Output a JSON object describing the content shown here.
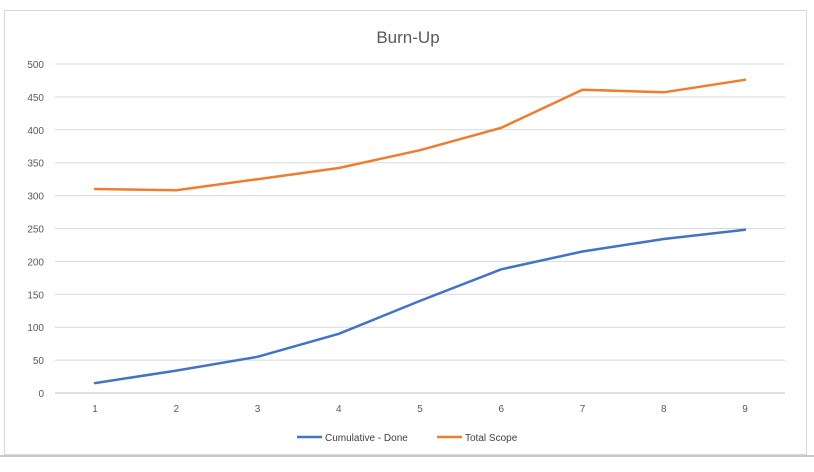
{
  "chart_data": {
    "type": "line",
    "title": "Burn-Up",
    "xlabel": "",
    "ylabel": "",
    "x": [
      1,
      2,
      3,
      4,
      5,
      6,
      7,
      8,
      9
    ],
    "ylim": [
      0,
      500
    ],
    "yticks": [
      0,
      50,
      100,
      150,
      200,
      250,
      300,
      350,
      400,
      450,
      500
    ],
    "grid": true,
    "legend_position": "bottom",
    "series": [
      {
        "name": "Cumulative - Done",
        "color": "#4472c4",
        "values": [
          15,
          34,
          55,
          90,
          140,
          188,
          215,
          234,
          248
        ]
      },
      {
        "name": "Total Scope",
        "color": "#ed7d31",
        "values": [
          310,
          308,
          325,
          342,
          369,
          403,
          461,
          457,
          476
        ]
      }
    ]
  }
}
